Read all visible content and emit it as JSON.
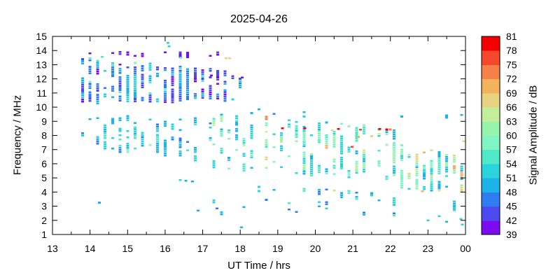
{
  "chart_data": {
    "type": "scatter",
    "title": "2025-04-26",
    "xlabel": "UT Time / hrs",
    "ylabel": "Frequency / MHz",
    "colorbar_label": "Signal Amplitude / dB",
    "xlim": [
      13,
      24
    ],
    "ylim": [
      1,
      15
    ],
    "x_minor_step": 0.5,
    "xticks": [
      {
        "v": 13,
        "label": "13"
      },
      {
        "v": 14,
        "label": "14"
      },
      {
        "v": 15,
        "label": "15"
      },
      {
        "v": 16,
        "label": "16"
      },
      {
        "v": 17,
        "label": "17"
      },
      {
        "v": 18,
        "label": "18"
      },
      {
        "v": 19,
        "label": "19"
      },
      {
        "v": 20,
        "label": "20"
      },
      {
        "v": 21,
        "label": "21"
      },
      {
        "v": 22,
        "label": "22"
      },
      {
        "v": 23,
        "label": "23"
      },
      {
        "v": 24,
        "label": "00"
      }
    ],
    "yticks": [
      1,
      2,
      3,
      4,
      5,
      6,
      7,
      8,
      9,
      10,
      11,
      12,
      13,
      14,
      15
    ],
    "colorbar": {
      "min": 39,
      "max": 81,
      "band_step": 3,
      "tick_labels": [
        39,
        42,
        45,
        48,
        51,
        54,
        57,
        60,
        63,
        66,
        69,
        72,
        75,
        78,
        81
      ],
      "colors": [
        "#7c0bf2",
        "#4f4af0",
        "#2e7ef2",
        "#1cb3e8",
        "#2bd4dc",
        "#4de9c9",
        "#80f5c3",
        "#97f5ab",
        "#c3ee9b",
        "#e8d381",
        "#f2b35c",
        "#f58048",
        "#f4472b",
        "#f40000"
      ]
    },
    "marker": {
      "w": 4,
      "h": 2.6,
      "f_pitch": 0.15
    },
    "seed": 1337,
    "clusters": [
      {
        "name": "sporadic-e-14mhz",
        "t": [
          14.0,
          17.75
        ],
        "dt": 0.2,
        "p_col": 0.5,
        "f_top": [
          14.0,
          13.85
        ],
        "f_bot": [
          13.72,
          13.6
        ],
        "fill": 0.55,
        "toggle": 0.6,
        "amps": {
          "39": 8,
          "42": 3,
          "51": 0.4,
          "54": 0.3
        }
      },
      {
        "name": "hf-day-cluster",
        "t": [
          13.8,
          18.1
        ],
        "dt": 0.2,
        "p_col": 0.93,
        "f_top": [
          13.5,
          12.5
        ],
        "f_bot": [
          10.3,
          10.6
        ],
        "fill": 0.6,
        "toggle": 0.35,
        "amps": {
          "39": 1.5,
          "42": 5,
          "45": 6,
          "48": 3.5,
          "51": 2,
          "54": 0.8,
          "57": 0.3
        }
      },
      {
        "name": "day-mid-band",
        "t": [
          13.8,
          17.2
        ],
        "dt": 0.2,
        "p_col": 0.9,
        "f_top": [
          9.4,
          9.1
        ],
        "f_bot": [
          7.2,
          6.2
        ],
        "fill": 0.35,
        "toggle": 0.5,
        "amps": {
          "45": 2,
          "48": 5,
          "51": 5,
          "54": 2,
          "57": 1,
          "60": 0.4,
          "66": 0.08
        }
      },
      {
        "name": "dusk-main-band",
        "t": [
          17.3,
          22.1
        ],
        "dt": 0.2,
        "p_col": 0.95,
        "f_top": [
          9.7,
          8.5
        ],
        "f_bot": [
          5.7,
          4.9
        ],
        "fill": 0.4,
        "toggle": 0.45,
        "amps": {
          "48": 3,
          "51": 5,
          "54": 4,
          "57": 3,
          "60": 2,
          "63": 1,
          "66": 0.7,
          "69": 0.35,
          "72": 0.12
        }
      },
      {
        "name": "night-columns",
        "t": [
          22.3,
          23.95
        ],
        "dt": 0.2,
        "p_col": 1,
        "f_top": [
          7.5,
          6.6
        ],
        "f_bot": [
          4.4,
          3.9
        ],
        "fill": 0.62,
        "toggle": 0.35,
        "amps": {
          "48": 2,
          "51": 4,
          "54": 3,
          "57": 3,
          "60": 2.5,
          "63": 1.5,
          "66": 1,
          "69": 0.45,
          "72": 0.15
        }
      },
      {
        "name": "evening-low-band",
        "t": [
          18.5,
          22.1
        ],
        "dt": 0.2,
        "p_col": 0.5,
        "f_top": [
          4.4,
          4.3
        ],
        "f_bot": [
          3.3,
          3.4
        ],
        "fill": 0.25,
        "toggle": 0.6,
        "amps": {
          "45": 1,
          "48": 4,
          "51": 4,
          "54": 1
        }
      },
      {
        "name": "low-sporadic",
        "t": [
          17.3,
          23.9
        ],
        "dt": 0.2,
        "p_col": 0.3,
        "f_top": [
          3.4,
          3.3
        ],
        "f_bot": [
          2.4,
          2.3
        ],
        "fill": 0.22,
        "toggle": 0.7,
        "amps": {
          "45": 2,
          "48": 4,
          "51": 3,
          "54": 1
        }
      },
      {
        "name": "night-9mhz-row",
        "t": [
          22.3,
          23.95
        ],
        "dt": 0.2,
        "p_col": 0.6,
        "f_top": [
          9.75,
          9.75
        ],
        "f_bot": [
          9.35,
          9.35
        ],
        "fill": 0.45,
        "toggle": 0.6,
        "amps": {
          "45": 2,
          "48": 3,
          "51": 4,
          "54": 1
        }
      },
      {
        "name": "dusk-10mhz-sporadic",
        "t": [
          18.3,
          20.3
        ],
        "dt": 0.2,
        "p_col": 0.4,
        "f_top": [
          10.1,
          9.9
        ],
        "f_bot": [
          9.5,
          9.4
        ],
        "fill": 0.3,
        "toggle": 0.7,
        "amps": {
          "45": 2,
          "48": 3,
          "51": 4
        }
      }
    ],
    "highlight_points": [
      [
        19.12,
        8.5,
        79
      ],
      [
        19.72,
        8.5,
        79
      ],
      [
        20.62,
        8.45,
        80
      ],
      [
        21.2,
        8.4,
        76
      ],
      [
        21.72,
        8.45,
        79
      ],
      [
        21.9,
        8.42,
        78
      ],
      [
        22.0,
        8.42,
        72
      ],
      [
        20.45,
        8.35,
        67
      ],
      [
        21.15,
        7.9,
        70
      ],
      [
        21.5,
        7.95,
        67
      ],
      [
        20.98,
        7.2,
        75
      ],
      [
        22.9,
        6.8,
        71
      ],
      [
        23.95,
        7.6,
        66
      ],
      [
        22.85,
        4.05,
        69
      ],
      [
        20.5,
        4.1,
        66
      ],
      [
        17.62,
        13.45,
        66
      ],
      [
        17.72,
        13.45,
        66
      ],
      [
        16.42,
        13.5,
        54
      ],
      [
        14.32,
        13.55,
        54
      ],
      [
        16.1,
        14.3,
        51
      ],
      [
        16.08,
        14.55,
        51
      ],
      [
        17.23,
        12.25,
        39
      ],
      [
        18.05,
        12.1,
        40
      ],
      [
        14.25,
        3.25,
        48
      ],
      [
        16.4,
        4.85,
        51
      ],
      [
        16.55,
        4.8,
        48
      ],
      [
        16.73,
        4.75,
        48
      ],
      [
        16.88,
        2.7,
        48
      ],
      [
        17.38,
        2.85,
        45
      ],
      [
        18.7,
        3.45,
        45
      ],
      [
        18.03,
        1.5,
        48
      ],
      [
        19.5,
        2.6,
        45
      ],
      [
        23.0,
        2.0,
        51
      ],
      [
        23.5,
        1.9,
        48
      ],
      [
        23.88,
        2.1,
        51
      ],
      [
        23.92,
        1.7,
        51
      ],
      [
        23.3,
        2.3,
        51
      ]
    ]
  },
  "layout_colors": {
    "background": "#ffffff",
    "axis": "#000000",
    "text": "#000000"
  }
}
